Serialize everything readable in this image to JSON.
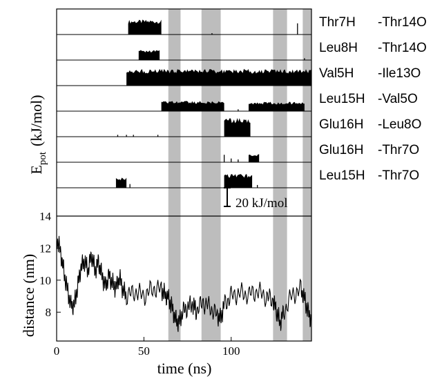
{
  "chart_data": [
    {
      "type": "area",
      "ylabel_main": "E",
      "ylabel_sub": "pot",
      "ylabel_unit": "(kJ/mol)",
      "scale_bar_label": "20 kJ/mol",
      "scale_bar_value": 20,
      "xlim": [
        0,
        146
      ],
      "rows": [
        {
          "donor": "Thr7H",
          "acceptor": "-Thr14O",
          "blocks": [
            {
              "x0": 41,
              "x1": 60,
              "h": 16
            }
          ],
          "spikes": [
            {
              "x": 89,
              "h": 1.5
            },
            {
              "x": 138,
              "h": 12
            }
          ]
        },
        {
          "donor": "Leu8H",
          "acceptor": "-Thr14O",
          "blocks": [
            {
              "x0": 47,
              "x1": 59,
              "h": 11
            }
          ],
          "spikes": [
            {
              "x": 142,
              "h": 2
            }
          ]
        },
        {
          "donor": "Val5H",
          "acceptor": "-Ile13O",
          "blocks": [
            {
              "x0": 40,
              "x1": 146,
              "h": 18
            }
          ],
          "spikes": []
        },
        {
          "donor": "Leu15H",
          "acceptor": "-Val5O",
          "blocks": [
            {
              "x0": 60,
              "x1": 96,
              "h": 11
            },
            {
              "x0": 110,
              "x1": 142,
              "h": 10
            }
          ],
          "spikes": [
            {
              "x": 104,
              "h": 2
            }
          ]
        },
        {
          "donor": "Glu16H",
          "acceptor": "-Leu8O",
          "blocks": [
            {
              "x0": 96,
              "x1": 111,
              "h": 20
            }
          ],
          "spikes": [
            {
              "x": 35,
              "h": 2
            },
            {
              "x": 40,
              "h": 2
            },
            {
              "x": 44,
              "h": 2
            },
            {
              "x": 58,
              "h": 2
            }
          ]
        },
        {
          "donor": "Glu16H",
          "acceptor": "-Thr7O",
          "blocks": [
            {
              "x0": 110,
              "x1": 116,
              "h": 9
            }
          ],
          "spikes": [
            {
              "x": 96,
              "h": 8
            },
            {
              "x": 100,
              "h": 4
            },
            {
              "x": 104,
              "h": 3
            }
          ]
        },
        {
          "donor": "Leu15H",
          "acceptor": "-Thr7O",
          "blocks": [
            {
              "x0": 96,
              "x1": 112,
              "h": 15
            },
            {
              "x0": 34,
              "x1": 40,
              "h": 11
            }
          ],
          "spikes": [
            {
              "x": 42,
              "h": 4
            },
            {
              "x": 115,
              "h": 3
            }
          ]
        }
      ]
    },
    {
      "type": "line",
      "xlabel": "time (ns)",
      "ylabel": "distance (nm)",
      "xlim": [
        0,
        146
      ],
      "ylim": [
        6.2,
        14
      ],
      "x_ticks": [
        0,
        50,
        100
      ],
      "y_ticks": [
        8,
        10,
        12,
        14
      ],
      "series": [
        {
          "x": [
            0,
            2,
            4,
            6,
            8,
            10,
            12,
            14,
            16,
            18,
            20,
            22,
            24,
            26,
            28,
            30,
            32,
            34,
            36,
            38,
            40,
            45,
            50,
            55,
            60,
            62,
            64,
            66,
            68,
            70,
            72,
            75,
            78,
            80,
            84,
            88,
            92,
            94,
            96,
            100,
            105,
            110,
            115,
            120,
            124,
            126,
            128,
            130,
            135,
            140,
            142,
            144,
            146
          ],
          "y": [
            12.6,
            11.9,
            10.6,
            9.5,
            8.5,
            8.4,
            9.6,
            10.8,
            11.2,
            10.6,
            11.6,
            10.6,
            11.1,
            10.3,
            9.6,
            10.3,
            9.8,
            9.5,
            10.2,
            9.4,
            9.0,
            9.3,
            9.0,
            9.5,
            9.4,
            9.1,
            8.9,
            8.3,
            7.6,
            7.3,
            8.0,
            8.3,
            8.5,
            8.1,
            8.6,
            8.3,
            7.8,
            7.6,
            8.5,
            9.0,
            9.2,
            9.1,
            9.3,
            9.0,
            8.7,
            8.1,
            7.3,
            8.0,
            9.1,
            9.4,
            8.9,
            8.0,
            7.5
          ]
        }
      ]
    }
  ],
  "shaded_intervals_ns": [
    [
      64,
      71
    ],
    [
      83,
      94
    ],
    [
      124,
      132
    ],
    [
      141,
      146
    ]
  ],
  "colors": {
    "shade": "#bdbdbd",
    "ink": "#000000"
  }
}
